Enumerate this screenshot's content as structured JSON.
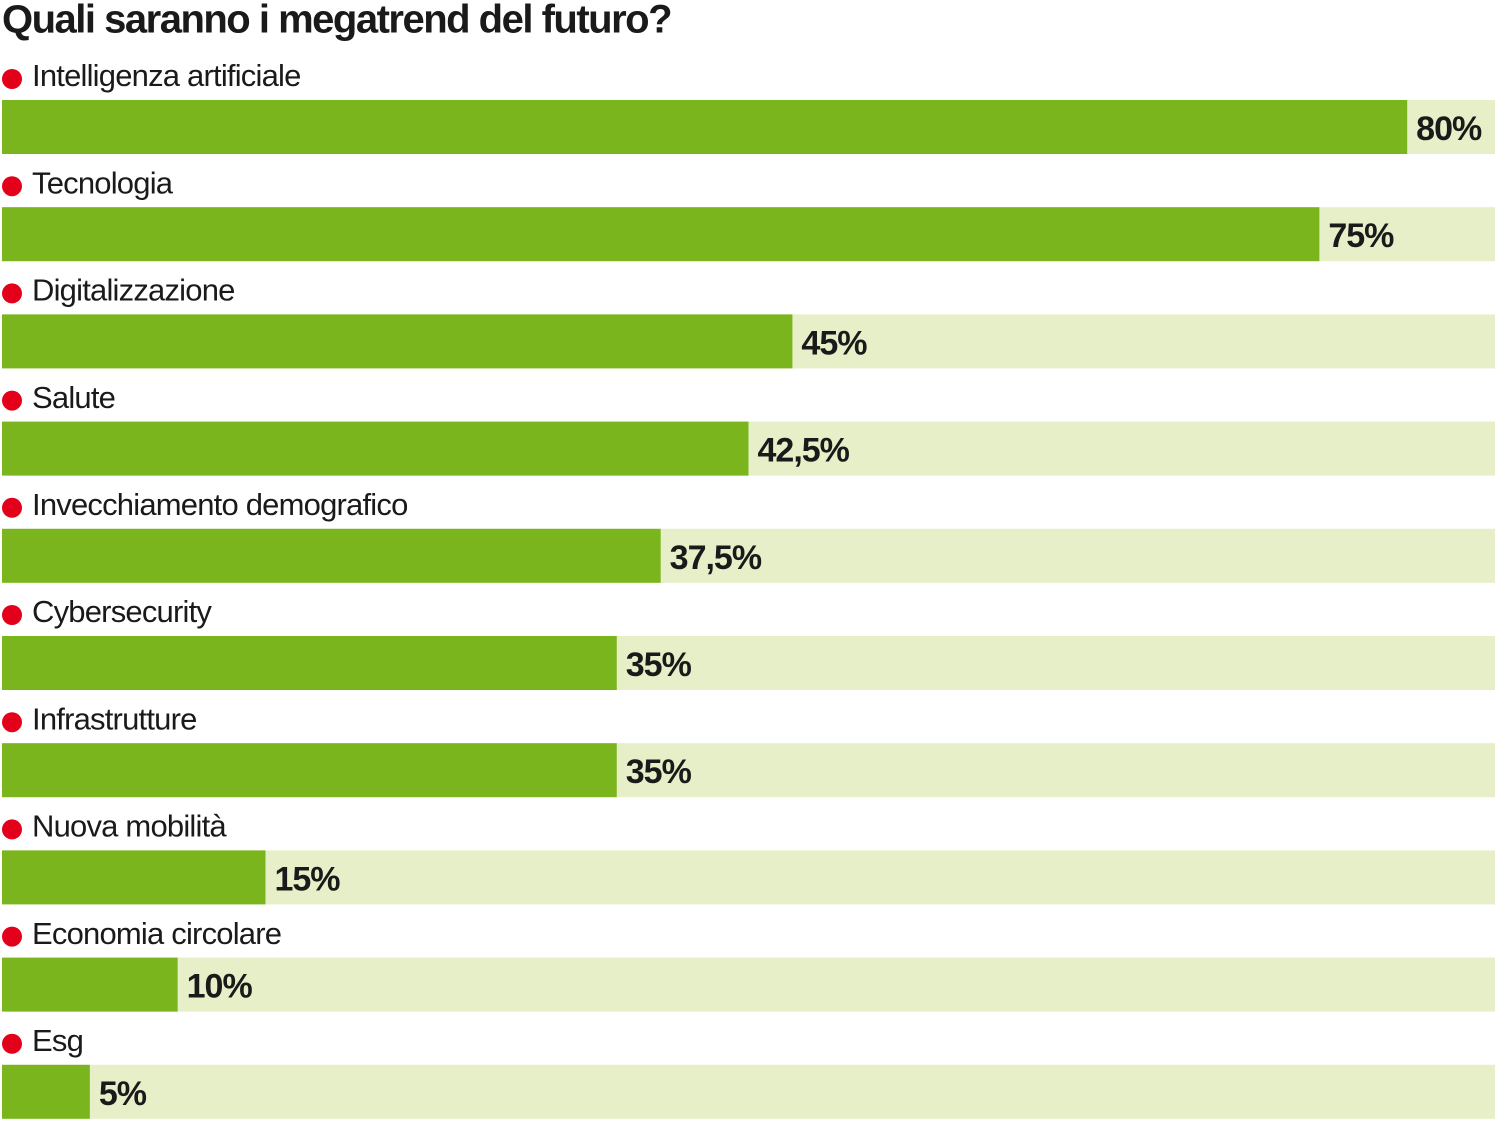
{
  "chart_data": {
    "type": "hbar",
    "title": "Quali saranno i megatrend del futuro?",
    "categories": [
      "Intelligenza artificiale",
      "Tecnologia",
      "Digitalizzazione",
      "Salute",
      "Invecchiamento demografico",
      "Cybersecurity",
      "Infrastrutture",
      "Nuova mobilità",
      "Economia circolare",
      "Esg"
    ],
    "values": [
      80,
      75,
      45,
      42.5,
      37.5,
      35,
      35,
      15,
      10,
      5
    ],
    "value_labels": [
      "80%",
      "75%",
      "45%",
      "42,5%",
      "37,5%",
      "35%",
      "35%",
      "15%",
      "10%",
      "5%"
    ],
    "color": "#7ab51d",
    "track_color": "#e6efc7",
    "marker_color": "#e2001a",
    "xlim": [
      0,
      85
    ]
  }
}
